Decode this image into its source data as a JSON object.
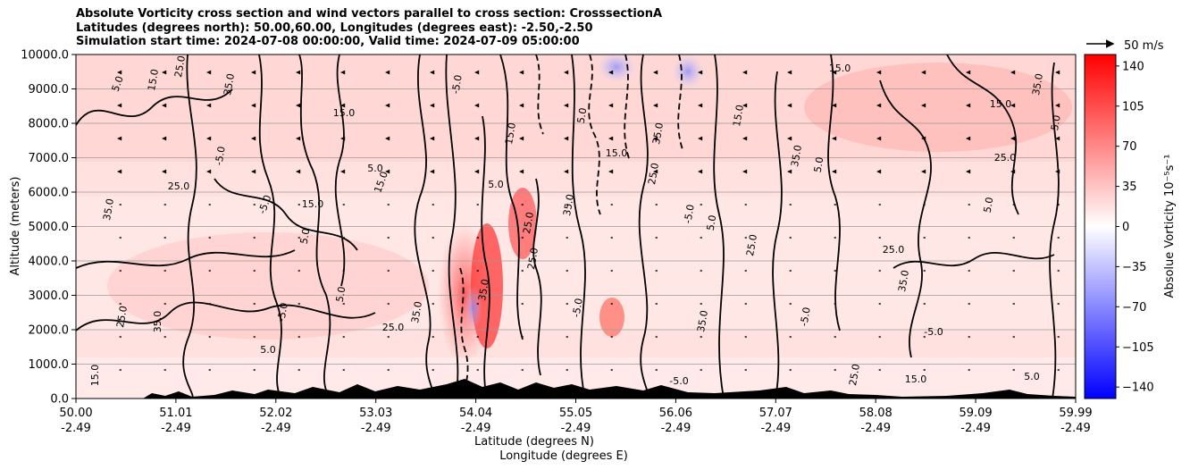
{
  "title": {
    "line1": "Absolute Vorticity cross section and wind vectors parallel to cross section: CrosssectionA",
    "line2": "Latitudes (degrees north): 50.00,60.00, Longitudes (degrees east): -2.50,-2.50",
    "line3": "Simulation start time: 2024-07-08 00:00:00, Valid time: 2024-07-09 05:00:00"
  },
  "chart_data": {
    "type": "heatmap",
    "description_fields": "cross-section filled contour with line contours and wind vectors",
    "xlabel_line1": "Latitude (degrees N)",
    "xlabel_line2": "Longitude (degrees E)",
    "ylabel": "Altitude (meters)",
    "ylim": [
      0,
      10000
    ],
    "y_ticks": [
      "0.0",
      "1000.0",
      "2000.0",
      "3000.0",
      "4000.0",
      "5000.0",
      "6000.0",
      "7000.0",
      "8000.0",
      "9000.0",
      "10000.0"
    ],
    "x_ticks": [
      {
        "lat": "50.00",
        "lon": "-2.49"
      },
      {
        "lat": "51.01",
        "lon": "-2.49"
      },
      {
        "lat": "52.02",
        "lon": "-2.49"
      },
      {
        "lat": "53.03",
        "lon": "-2.49"
      },
      {
        "lat": "54.04",
        "lon": "-2.49"
      },
      {
        "lat": "55.05",
        "lon": "-2.49"
      },
      {
        "lat": "56.06",
        "lon": "-2.49"
      },
      {
        "lat": "57.07",
        "lon": "-2.49"
      },
      {
        "lat": "58.08",
        "lon": "-2.49"
      },
      {
        "lat": "59.09",
        "lon": "-2.49"
      },
      {
        "lat": "59.99",
        "lon": "-2.49"
      }
    ],
    "colorbar": {
      "label": "Absolue Vorticity 10⁻⁵s⁻¹",
      "ticks": [
        "140",
        "105",
        "70",
        "35",
        "0",
        "−35",
        "−70",
        "−105",
        "−140"
      ],
      "range": [
        -150,
        150
      ],
      "colors": {
        "max": "#ff0000",
        "mid": "#ffffff",
        "min": "#0000ff"
      }
    },
    "quiver_key": "50 m/s",
    "contour_labels": [
      "5.0",
      "15.0",
      "25.0",
      "35.0",
      "-5.0"
    ],
    "grid": true
  }
}
